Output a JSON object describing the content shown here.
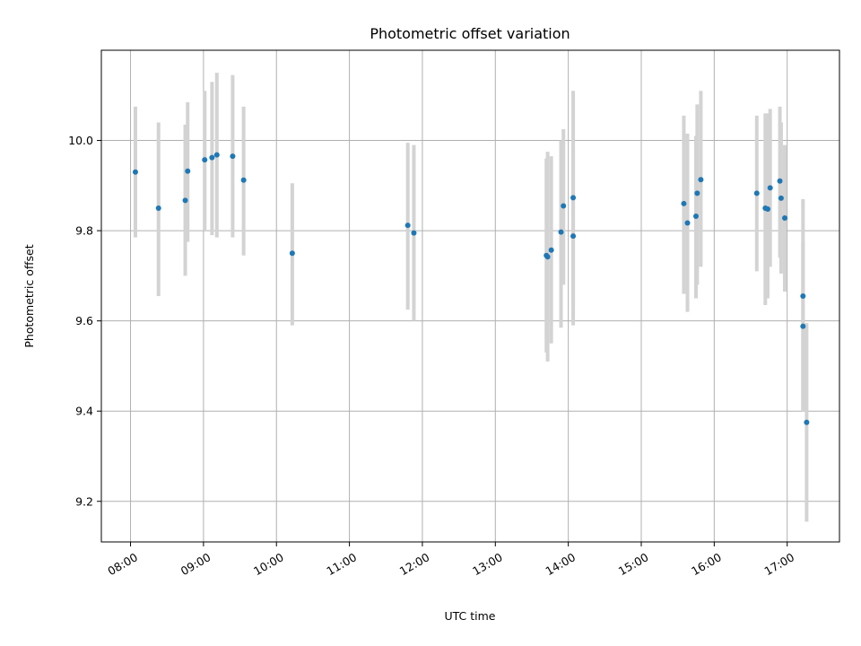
{
  "chart_data": {
    "type": "scatter",
    "title": "Photometric offset variation",
    "xlabel": "UTC time",
    "ylabel": "Photometric offset",
    "x_ticks": [
      "08:00",
      "09:00",
      "10:00",
      "11:00",
      "12:00",
      "13:00",
      "14:00",
      "15:00",
      "16:00",
      "17:00"
    ],
    "y_ticks": [
      9.2,
      9.4,
      9.6,
      9.8,
      10.0
    ],
    "xlim": [
      "07:36",
      "17:43"
    ],
    "ylim": [
      9.11,
      10.2
    ],
    "grid": true,
    "legend": "none",
    "colors": {
      "point": "#1f77b4",
      "errorbar": "#d3d3d3",
      "grid": "#b0b0b0"
    },
    "points": [
      {
        "time": "08:04",
        "y": 9.93,
        "low": 9.785,
        "high": 10.075
      },
      {
        "time": "08:23",
        "y": 9.85,
        "low": 9.655,
        "high": 10.04
      },
      {
        "time": "08:45",
        "y": 9.867,
        "low": 9.7,
        "high": 10.035
      },
      {
        "time": "08:47",
        "y": 9.932,
        "low": 9.775,
        "high": 10.085
      },
      {
        "time": "09:01",
        "y": 9.957,
        "low": 9.8,
        "high": 10.11
      },
      {
        "time": "09:07",
        "y": 9.962,
        "low": 9.79,
        "high": 10.13
      },
      {
        "time": "09:11",
        "y": 9.968,
        "low": 9.785,
        "high": 10.15
      },
      {
        "time": "09:24",
        "y": 9.965,
        "low": 9.785,
        "high": 10.145
      },
      {
        "time": "09:33",
        "y": 9.912,
        "low": 9.745,
        "high": 10.075
      },
      {
        "time": "10:13",
        "y": 9.75,
        "low": 9.59,
        "high": 9.905
      },
      {
        "time": "11:48",
        "y": 9.812,
        "low": 9.625,
        "high": 9.995
      },
      {
        "time": "11:53",
        "y": 9.795,
        "low": 9.6,
        "high": 9.99
      },
      {
        "time": "13:42",
        "y": 9.745,
        "low": 9.53,
        "high": 9.96
      },
      {
        "time": "13:43",
        "y": 9.742,
        "low": 9.51,
        "high": 9.975
      },
      {
        "time": "13:46",
        "y": 9.757,
        "low": 9.55,
        "high": 9.965
      },
      {
        "time": "13:54",
        "y": 9.797,
        "low": 9.585,
        "high": 10.0
      },
      {
        "time": "13:56",
        "y": 9.855,
        "low": 9.68,
        "high": 10.025
      },
      {
        "time": "14:04",
        "y": 9.873,
        "low": 9.635,
        "high": 10.11
      },
      {
        "time": "14:04",
        "y": 9.788,
        "low": 9.59,
        "high": 9.985
      },
      {
        "time": "15:35",
        "y": 9.86,
        "low": 9.66,
        "high": 10.055
      },
      {
        "time": "15:38",
        "y": 9.817,
        "low": 9.62,
        "high": 10.015
      },
      {
        "time": "15:45",
        "y": 9.832,
        "low": 9.65,
        "high": 10.01
      },
      {
        "time": "15:46",
        "y": 9.883,
        "low": 9.68,
        "high": 10.08
      },
      {
        "time": "15:49",
        "y": 9.913,
        "low": 9.72,
        "high": 10.11
      },
      {
        "time": "16:35",
        "y": 9.883,
        "low": 9.71,
        "high": 10.055
      },
      {
        "time": "16:42",
        "y": 9.85,
        "low": 9.635,
        "high": 10.06
      },
      {
        "time": "16:44",
        "y": 9.848,
        "low": 9.65,
        "high": 10.06
      },
      {
        "time": "16:46",
        "y": 9.895,
        "low": 9.72,
        "high": 10.07
      },
      {
        "time": "16:54",
        "y": 9.91,
        "low": 9.74,
        "high": 10.075
      },
      {
        "time": "16:55",
        "y": 9.872,
        "low": 9.705,
        "high": 10.04
      },
      {
        "time": "16:58",
        "y": 9.828,
        "low": 9.665,
        "high": 9.99
      },
      {
        "time": "17:13",
        "y": 9.655,
        "low": 9.4,
        "high": 9.87
      },
      {
        "time": "17:13",
        "y": 9.588,
        "low": 9.4,
        "high": 9.775
      },
      {
        "time": "17:16",
        "y": 9.375,
        "low": 9.155,
        "high": 9.595
      }
    ]
  }
}
